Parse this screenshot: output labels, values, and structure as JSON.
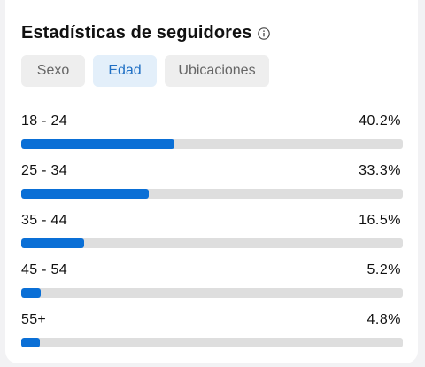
{
  "panel": {
    "title": "Estadísticas de seguidores",
    "info_icon": "info-circle-icon"
  },
  "tabs": [
    {
      "label": "Sexo",
      "active": false
    },
    {
      "label": "Edad",
      "active": true
    },
    {
      "label": "Ubicaciones",
      "active": false
    }
  ],
  "age_groups": [
    {
      "label": "18 - 24",
      "value": "40.2%",
      "percent": 40.2
    },
    {
      "label": "25 - 34",
      "value": "33.3%",
      "percent": 33.3
    },
    {
      "label": "35 - 44",
      "value": "16.5%",
      "percent": 16.5
    },
    {
      "label": "45 - 54",
      "value": "5.2%",
      "percent": 5.2
    },
    {
      "label": "55+",
      "value": "4.8%",
      "percent": 4.8
    }
  ],
  "colors": {
    "bar_fill": "#0a6fd6",
    "bar_track": "#dedede",
    "active_tab_bg": "#e3effa",
    "active_tab_text": "#1f6fc4",
    "inactive_tab_bg": "#eeeeee",
    "inactive_tab_text": "#666666"
  }
}
